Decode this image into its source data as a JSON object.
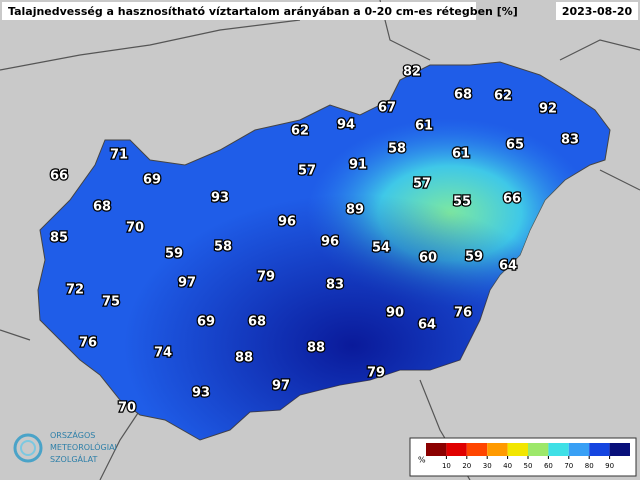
{
  "header": {
    "title": "Talajnedvesség a hasznosítható víztartalom arányában a 0-20 cm-es rétegben [%]",
    "date": "2023-08-20"
  },
  "stations": {
    "values": [
      82,
      68,
      62,
      92,
      94,
      67,
      62,
      61,
      83,
      71,
      58,
      91,
      61,
      65,
      57,
      66,
      69,
      57,
      55,
      66,
      93,
      89,
      68,
      96,
      70,
      85,
      96,
      54,
      58,
      59,
      60,
      59,
      64,
      79,
      97,
      83,
      72,
      75,
      90,
      76,
      69,
      68,
      64,
      76,
      74,
      88,
      88,
      79,
      97,
      93,
      70
    ]
  },
  "legend": {
    "unit": "%",
    "ticks": [
      10,
      20,
      30,
      40,
      50,
      60,
      70,
      80,
      90
    ],
    "colors": [
      "#8b0000",
      "#e00000",
      "#ff4500",
      "#ff9a00",
      "#f2e600",
      "#9de86a",
      "#3fe0e6",
      "#39a0f5",
      "#1545e0",
      "#08107a"
    ]
  },
  "logo": {
    "lines": [
      "ORSZÁGOS",
      "METEOROLÓGIAI",
      "SZOLGÁLAT"
    ]
  }
}
